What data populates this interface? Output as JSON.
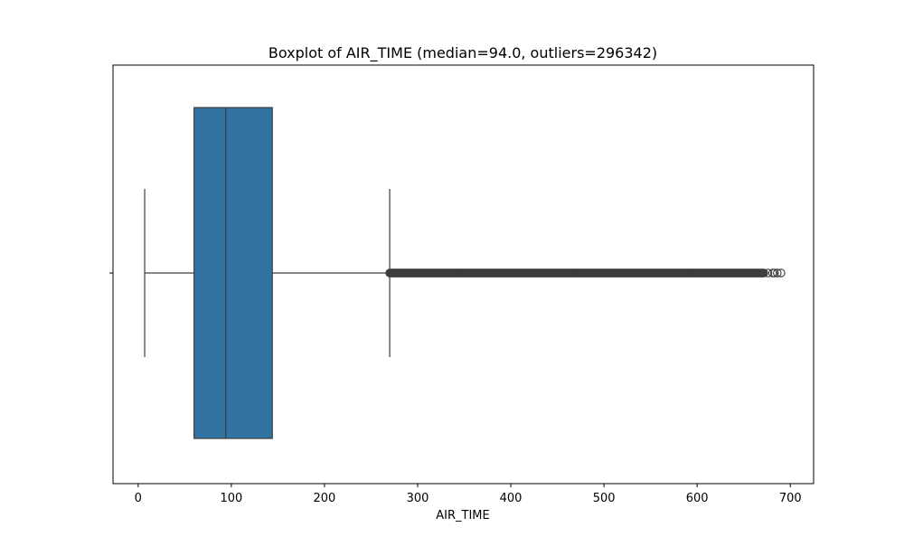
{
  "chart_data": {
    "type": "boxplot",
    "title": "Boxplot of AIR_TIME (median=94.0, outliers=296342)",
    "xlabel": "AIR_TIME",
    "ylabel": "",
    "orientation": "horizontal",
    "xlim": [
      -27,
      725
    ],
    "xticks": [
      0,
      100,
      200,
      300,
      400,
      500,
      600,
      700
    ],
    "grid": false,
    "box": {
      "whisker_low": 7,
      "q1": 60,
      "median": 94,
      "q3": 144,
      "whisker_high": 270,
      "outliers_min": 270,
      "outliers_max": 690,
      "outlier_count": 296342,
      "color": "#3274a1",
      "edge_color": "#3d3d3d"
    }
  }
}
